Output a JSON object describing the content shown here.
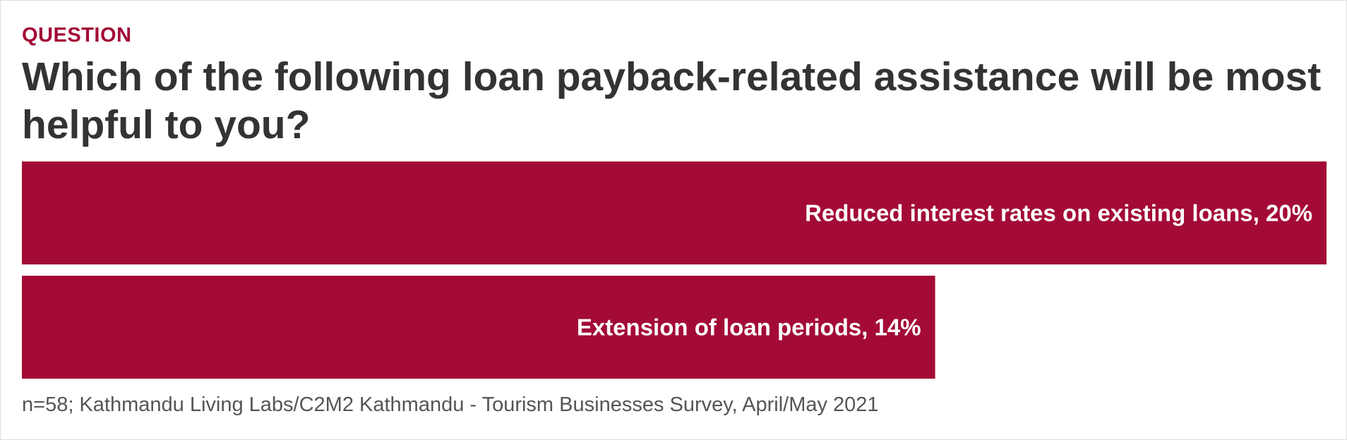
{
  "header": {
    "eyebrow": "QUESTION",
    "title": "Which of the following loan payback-related assistance will be most helpful to you?"
  },
  "footer": {
    "source": "n=58; Kathmandu Living Labs/C2M2 Kathmandu - Tourism Businesses Survey, April/May 2021"
  },
  "colors": {
    "bar": "#a30b36",
    "label": "#ffffff"
  },
  "chart_data": {
    "type": "bar",
    "orientation": "horizontal",
    "categories": [
      "Reduced interest rates on existing loans",
      "Extension of loan periods"
    ],
    "values": [
      20,
      14
    ],
    "value_suffix": "%",
    "labels": [
      "Reduced interest rates on existing loans, 20%",
      "Extension of loan periods, 14%"
    ],
    "xlim": [
      0,
      20
    ],
    "grid": false,
    "legend": "none"
  }
}
